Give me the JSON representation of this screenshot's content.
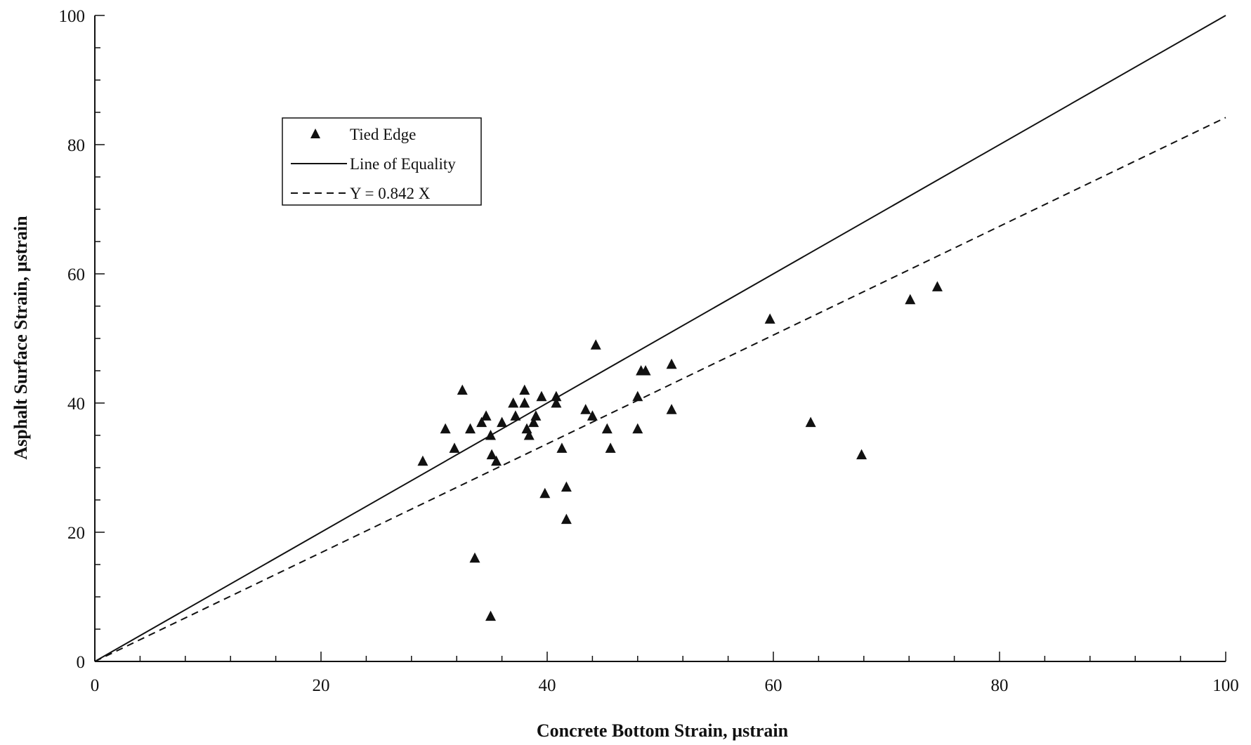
{
  "chart_data": {
    "type": "scatter",
    "xlabel": "Concrete Bottom Strain, µstrain",
    "ylabel": "Asphalt Surface Strain, µstrain",
    "xlim": [
      0,
      100
    ],
    "ylim": [
      0,
      100
    ],
    "x_ticks": [
      "0",
      "20",
      "40",
      "60",
      "80",
      "100"
    ],
    "y_ticks": [
      "0",
      "20",
      "40",
      "60",
      "80",
      "100"
    ],
    "grid": false,
    "legend_position": "upper-left",
    "series": [
      {
        "name": "Tied Edge",
        "kind": "scatter",
        "marker": "triangle",
        "points": [
          [
            29,
            31
          ],
          [
            31,
            36
          ],
          [
            31.8,
            33
          ],
          [
            32.5,
            42
          ],
          [
            33.2,
            36
          ],
          [
            33.6,
            16
          ],
          [
            34.2,
            37
          ],
          [
            34.6,
            38
          ],
          [
            35,
            35
          ],
          [
            35.1,
            32
          ],
          [
            35,
            7
          ],
          [
            35.5,
            31
          ],
          [
            36,
            37
          ],
          [
            37,
            40
          ],
          [
            37.2,
            38
          ],
          [
            38,
            42
          ],
          [
            38,
            40
          ],
          [
            38.2,
            36
          ],
          [
            38.4,
            35
          ],
          [
            38.8,
            37
          ],
          [
            39,
            38
          ],
          [
            39.5,
            41
          ],
          [
            39.8,
            26
          ],
          [
            40.8,
            41
          ],
          [
            40.8,
            40
          ],
          [
            41.3,
            33
          ],
          [
            41.7,
            27
          ],
          [
            41.7,
            22
          ],
          [
            43.4,
            39
          ],
          [
            44,
            38
          ],
          [
            44.3,
            49
          ],
          [
            45.3,
            36
          ],
          [
            45.6,
            33
          ],
          [
            48,
            41
          ],
          [
            48,
            36
          ],
          [
            48.3,
            45
          ],
          [
            48.7,
            45
          ],
          [
            51,
            46
          ],
          [
            51,
            39
          ],
          [
            59.7,
            53
          ],
          [
            63.3,
            37
          ],
          [
            67.8,
            32
          ],
          [
            72.1,
            56
          ],
          [
            74.5,
            58
          ]
        ]
      },
      {
        "name": "Line of Equality",
        "kind": "line",
        "style": "solid",
        "slope": 1
      },
      {
        "name": "Y = 0.842 X",
        "kind": "line",
        "style": "dashed",
        "slope": 0.842
      }
    ]
  }
}
